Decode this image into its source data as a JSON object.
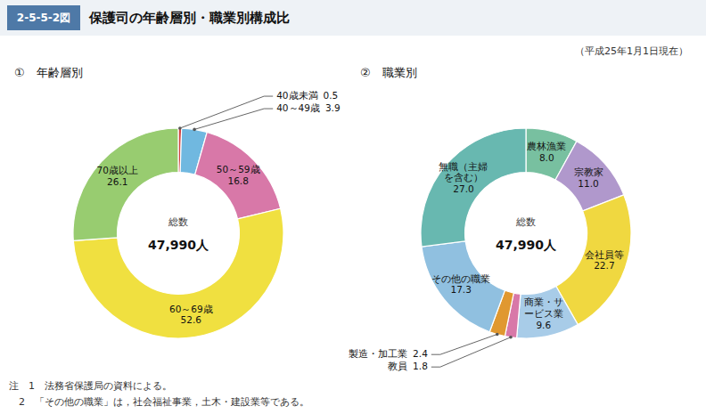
{
  "title_tag": "2-5-5-2図",
  "title": "保護司の年齢層別・職業別構成比",
  "subtitle": "（平成25年1月1日現在）",
  "notes": [
    "注　1　法務省保護局の資料による。",
    "　2　「その他の職業」は，社会福祉事業，土木・建設業等である。"
  ],
  "chart_data": [
    {
      "type": "donut",
      "title": "①　年齢層別",
      "annotations": [
        "総数",
        "47,990人"
      ],
      "categories": [
        "40歳未満",
        "40～49歳",
        "50～59歳",
        "60～69歳",
        "70歳以上"
      ],
      "values": [
        0.5,
        3.9,
        16.8,
        52.6,
        26.1
      ],
      "value_labels": [
        "0.5",
        "3.9",
        "16.8",
        "52.6",
        "26.1"
      ],
      "data_labels": true,
      "colors": [
        "#d04040",
        "#70b8e0",
        "#d878a8",
        "#f0e040",
        "#98cc70"
      ]
    },
    {
      "type": "donut",
      "title": "②　職業別",
      "annotations": [
        "総数",
        "47,990人"
      ],
      "categories": [
        "農林漁業",
        "宗教家",
        "会社員等",
        "商業・サービス業",
        "教員",
        "製造・加工業",
        "その他の職業",
        "無職（主婦を含む）"
      ],
      "values": [
        8.0,
        11.0,
        22.7,
        9.6,
        1.8,
        2.4,
        17.3,
        27.0
      ],
      "value_labels": [
        "8.0",
        "11.0",
        "22.7",
        "9.6",
        "1.8",
        "2.4",
        "17.3",
        "27.0"
      ],
      "data_labels": true,
      "colors": [
        "#78c0a0",
        "#b098cc",
        "#f0d840",
        "#a8cce8",
        "#d878a8",
        "#e09830",
        "#90c0e0",
        "#68b8b0"
      ]
    }
  ]
}
